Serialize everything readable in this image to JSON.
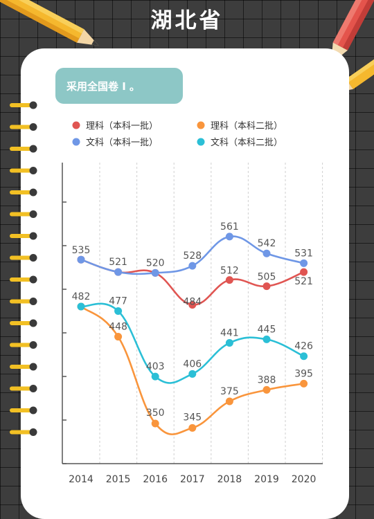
{
  "page": {
    "title": "湖北省"
  },
  "badge": {
    "text": "采用全国卷 I 。"
  },
  "colors": {
    "li_ben1": "#e05552",
    "li_ben2": "#f9953c",
    "wen_ben1": "#6f97e6",
    "wen_ben2": "#2bbfd6",
    "badge": "#8dc7c6",
    "board": "#3d3d3d",
    "ring": "#f2c024"
  },
  "chart_data": {
    "type": "line",
    "categories": [
      "2014",
      "2015",
      "2016",
      "2017",
      "2018",
      "2019",
      "2020"
    ],
    "series": [
      {
        "name": "理科（本科一批）",
        "color": "#e05552",
        "values": [
          535,
          521,
          520,
          484,
          512,
          505,
          521
        ],
        "labels": [
          "",
          "",
          "",
          "484",
          "512",
          "505",
          "521"
        ]
      },
      {
        "name": "理科（本科二批）",
        "color": "#f9953c",
        "values": [
          482,
          448,
          350,
          345,
          375,
          388,
          395
        ],
        "labels": [
          "",
          "448",
          "350",
          "345",
          "375",
          "388",
          "395"
        ]
      },
      {
        "name": "文科（本科一批）",
        "color": "#6f97e6",
        "values": [
          535,
          521,
          520,
          528,
          561,
          542,
          531
        ],
        "labels": [
          "535",
          "521",
          "520",
          "528",
          "561",
          "542",
          "531"
        ]
      },
      {
        "name": "文科（本科二批）",
        "color": "#2bbfd6",
        "values": [
          482,
          477,
          403,
          406,
          441,
          445,
          426
        ],
        "labels": [
          "482",
          "477",
          "403",
          "406",
          "441",
          "445",
          "426"
        ]
      }
    ],
    "ylim": [
      300,
      600
    ],
    "grid": "vertical dashed",
    "legend": "top-left"
  }
}
